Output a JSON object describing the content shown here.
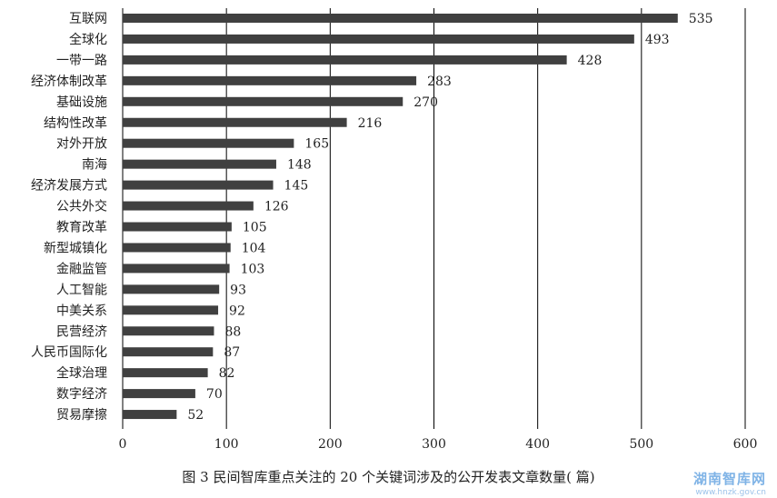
{
  "chart_data": {
    "type": "bar",
    "orientation": "horizontal",
    "categories": [
      "互联网",
      "全球化",
      "一带一路",
      "经济体制改革",
      "基础设施",
      "结构性改革",
      "对外开放",
      "南海",
      "经济发展方式",
      "公共外交",
      "教育改革",
      "新型城镇化",
      "金融监管",
      "人工智能",
      "中美关系",
      "民营经济",
      "人民币国际化",
      "全球治理",
      "数字经济",
      "贸易摩擦"
    ],
    "values": [
      535,
      493,
      428,
      283,
      270,
      216,
      165,
      148,
      145,
      126,
      105,
      104,
      103,
      93,
      92,
      88,
      87,
      82,
      70,
      52
    ],
    "xlim": [
      0,
      600
    ],
    "xticks": [
      0,
      100,
      200,
      300,
      400,
      500,
      600
    ],
    "grid": "vertical",
    "bar_color": "#404040",
    "title": "",
    "xlabel": "",
    "ylabel": ""
  },
  "caption": "图 3   民间智库重点关注的 20 个关键词涉及的公开发表文章数量( 篇)",
  "watermark": {
    "title": "湖南智库网",
    "url": "www.hnzk.gov.cn",
    "color": "#7fb3e6"
  }
}
